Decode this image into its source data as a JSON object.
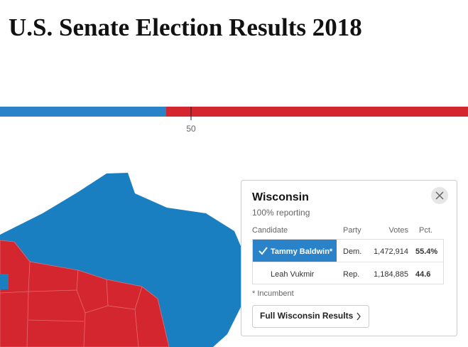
{
  "header": {
    "title": "U.S. Senate Election Results 2018"
  },
  "control_bar": {
    "marker_label": "50"
  },
  "popup": {
    "state": "Wisconsin",
    "reporting": "100% reporting",
    "columns": [
      "Candidate",
      "Party",
      "Votes",
      "Pct."
    ],
    "rows": [
      [
        "Tammy Baldwin*",
        "Dem.",
        "1,472,914",
        "55.4%"
      ],
      [
        "Leah Vukmir",
        "Rep.",
        "1,184,885",
        "44.6"
      ]
    ],
    "footnote": "* Incumbent",
    "button": "Full Wisconsin Results"
  }
}
